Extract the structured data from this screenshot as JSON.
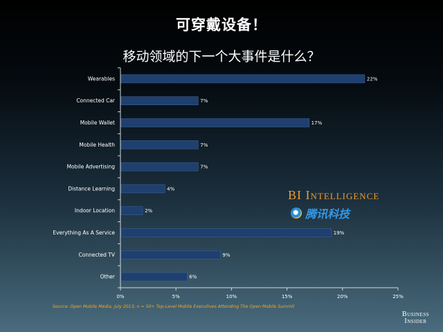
{
  "slide": {
    "title": "可穿戴设备！",
    "source": "Source: Open Mobile Media, July 2013; n = 50+ Top-Level Mobile Executives Attending The Open Mobile Summit",
    "brand_line1": "Business",
    "brand_line2": "Insider",
    "watermark_bi": "BI Intelligence",
    "watermark_tencent": "腾讯科技"
  },
  "colors": {
    "bar": "#1f3f6e",
    "bar_edge": "#3a5f95",
    "axis": "#cfd8e0",
    "text": "#ffffff",
    "source": "#f5a623",
    "watermark_bi": "#f39a2c",
    "watermark_tencent": "#3399e6"
  },
  "chart_data": {
    "type": "bar",
    "orientation": "horizontal",
    "title": "移动领域的下一个大事件是什么？",
    "categories": [
      "Wearables",
      "Connected Car",
      "Mobile Wallet",
      "Mobile Health",
      "Mobile Advertising",
      "Distance Learning",
      "Indoor Location",
      "Everything As A Service",
      "Connected TV",
      "Other"
    ],
    "values": [
      22,
      7,
      17,
      7,
      7,
      4,
      2,
      19,
      9,
      6
    ],
    "value_labels": [
      "22%",
      "7%",
      "17%",
      "7%",
      "7%",
      "4%",
      "2%",
      "19%",
      "9%",
      "6%"
    ],
    "xlim": [
      0,
      25
    ],
    "xticks": [
      0,
      5,
      10,
      15,
      20,
      25
    ],
    "xtick_labels": [
      "0%",
      "5%",
      "10%",
      "15%",
      "20%",
      "25%"
    ],
    "grid": false,
    "legend": "none"
  }
}
